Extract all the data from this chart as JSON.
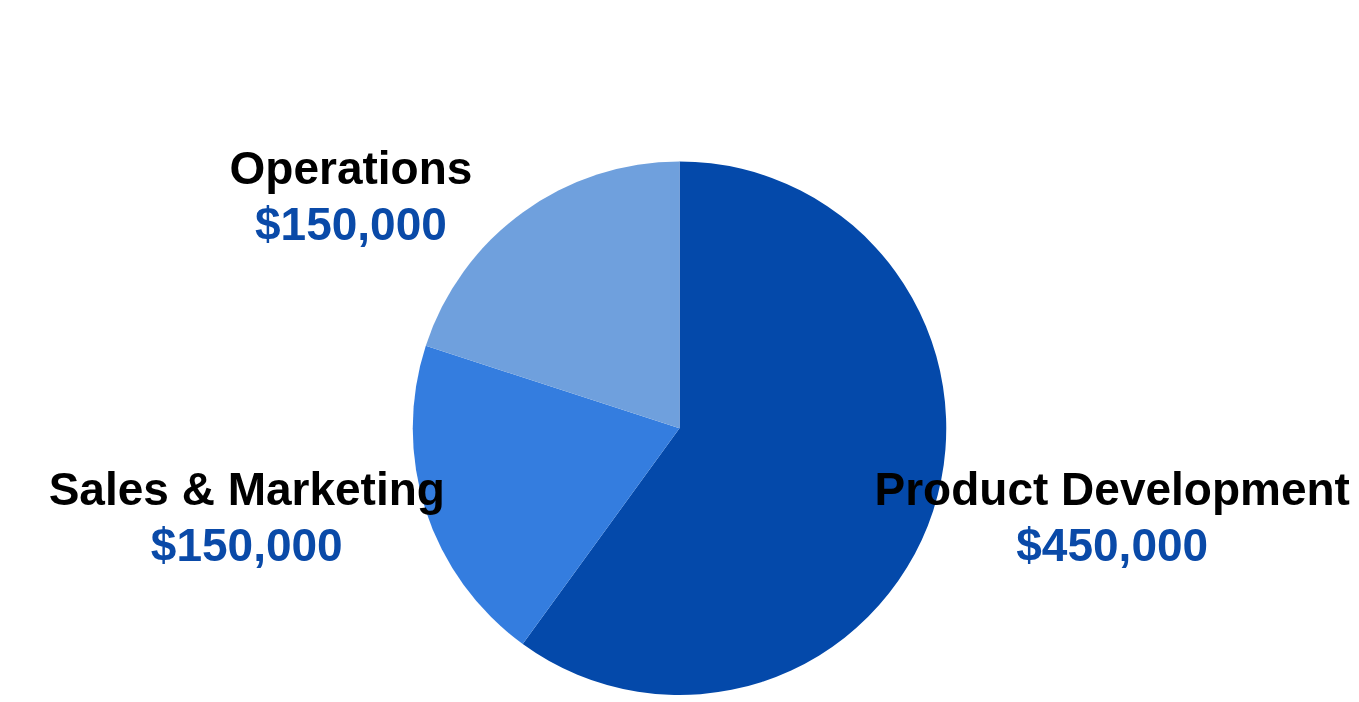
{
  "chart_data": {
    "type": "pie",
    "categories": [
      "Product Development",
      "Sales & Marketing",
      "Operations"
    ],
    "values": [
      450000,
      150000,
      150000
    ],
    "value_labels": [
      "$450,000",
      "$150,000",
      "$150,000"
    ],
    "colors": [
      "#0449aa",
      "#347ddf",
      "#6fa0dd"
    ],
    "legend": false
  }
}
